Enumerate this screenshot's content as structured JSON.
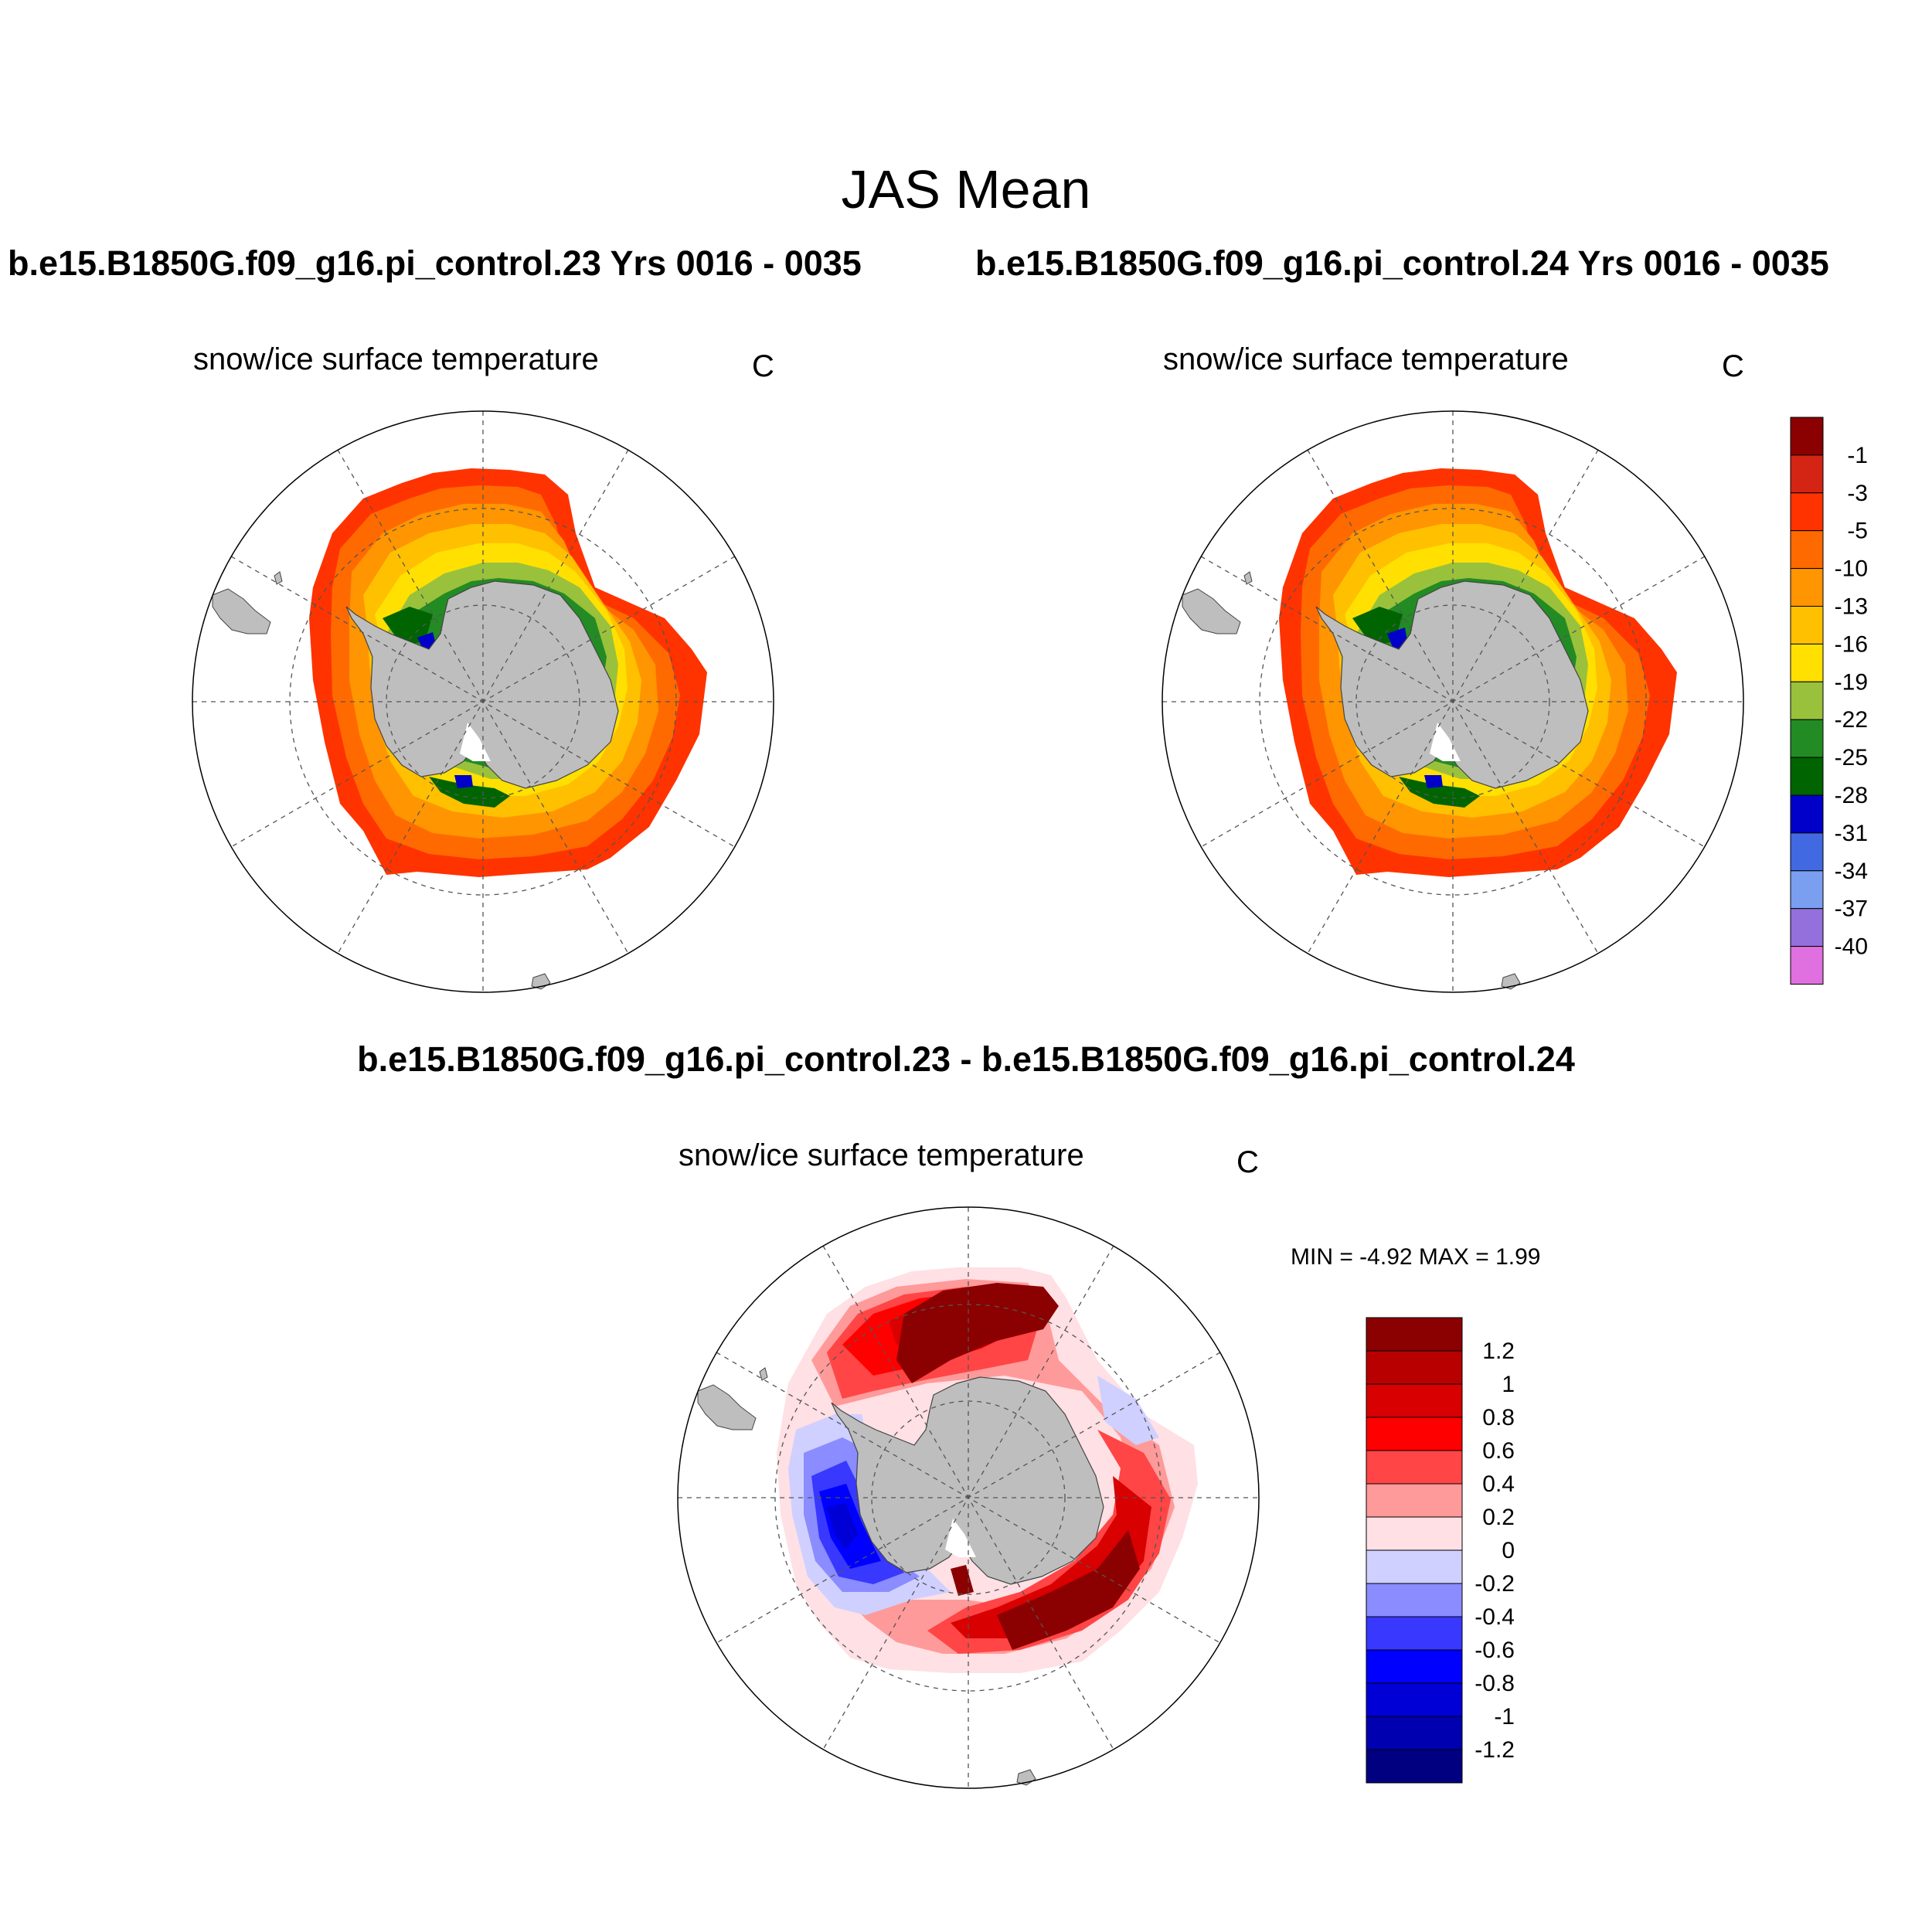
{
  "title": "JAS Mean",
  "panels": [
    {
      "run": "b.e15.B1850G.f09_g16.pi_control.23  Yrs 0016 - 0035",
      "variable": "snow/ice surface temperature",
      "units": "C"
    },
    {
      "run": "b.e15.B1850G.f09_g16.pi_control.24  Yrs 0016 - 0035",
      "variable": "snow/ice surface temperature",
      "units": "C"
    }
  ],
  "difference": {
    "title": "b.e15.B1850G.f09_g16.pi_control.23 - b.e15.B1850G.f09_g16.pi_control.24",
    "variable": "snow/ice surface temperature",
    "units": "C",
    "minmax_text": "MIN =  -4.92 MAX =   1.99",
    "min": -4.92,
    "max": 1.99
  },
  "map": {
    "projection": "south-polar-stereographic",
    "land_color": "#bebebe",
    "grid": "dashed lat/lon"
  },
  "colorbar_abs": {
    "labels": [
      "-1",
      "-3",
      "-5",
      "-10",
      "-13",
      "-16",
      "-19",
      "-22",
      "-25",
      "-28",
      "-31",
      "-34",
      "-37",
      "-40"
    ],
    "colors": [
      "#8b0000",
      "#d42414",
      "#ff3300",
      "#ff6a00",
      "#ff9500",
      "#ffc000",
      "#ffe000",
      "#9ac13b",
      "#238b23",
      "#006400",
      "#0000c8",
      "#4169e1",
      "#7a9ef0",
      "#9370db",
      "#e070e0"
    ]
  },
  "colorbar_diff": {
    "labels": [
      "1.2",
      "1",
      "0.8",
      "0.6",
      "0.4",
      "0.2",
      "0",
      "-0.2",
      "-0.4",
      "-0.6",
      "-0.8",
      "-1",
      "-1.2"
    ],
    "colors": [
      "#8b0000",
      "#b80000",
      "#d80000",
      "#ff0000",
      "#ff4545",
      "#ff9a9a",
      "#ffe0e4",
      "#cfd0ff",
      "#8a8cff",
      "#3838ff",
      "#0000ff",
      "#0000d6",
      "#0000b0",
      "#000080"
    ]
  }
}
